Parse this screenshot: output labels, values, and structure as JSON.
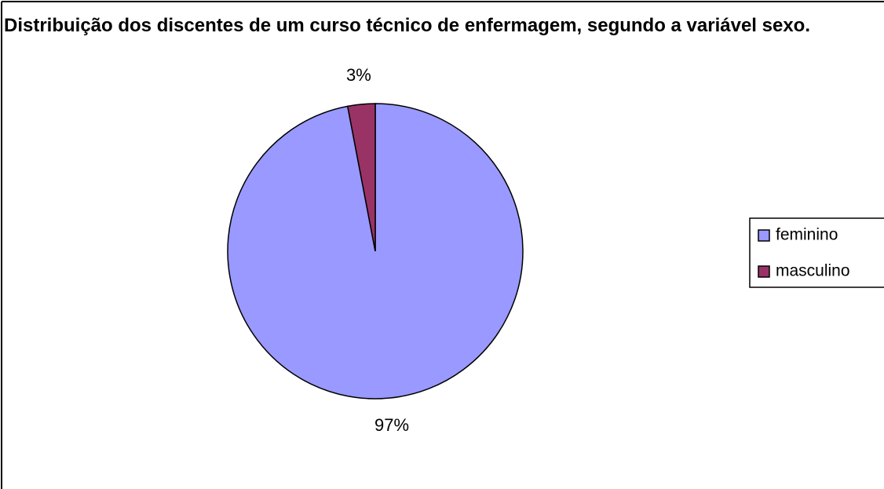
{
  "chart_data": {
    "type": "pie",
    "title": "Distribuição dos discentes de um curso técnico de enfermagem, segundo a variável sexo.",
    "categories": [
      "feminino",
      "masculino"
    ],
    "values": [
      97,
      3
    ],
    "value_labels": [
      "97%",
      "3%"
    ],
    "colors": [
      "#9999ff",
      "#993366"
    ],
    "legend": "right"
  }
}
